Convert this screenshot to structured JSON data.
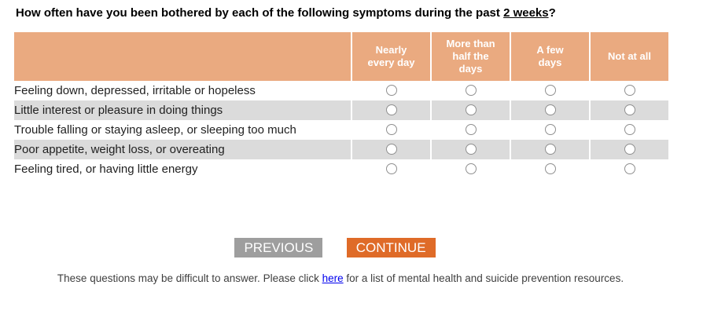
{
  "question": {
    "text_before": "How often have you been bothered by each of the following symptoms during the past ",
    "text_underlined": "2 weeks",
    "text_after": "?"
  },
  "table": {
    "column_headers": [
      "Nearly\nevery day",
      "More than\nhalf the\ndays",
      "A few\ndays",
      "Not at all"
    ],
    "rows": [
      "Feeling down, depressed, irritable or hopeless",
      "Little interest or pleasure in doing things",
      "Trouble falling or staying asleep, or sleeping too much",
      "Poor appetite, weight loss, or overeating",
      "Feeling tired, or having little energy"
    ],
    "selections": [
      null,
      null,
      null,
      null,
      null
    ]
  },
  "buttons": {
    "previous": "PREVIOUS",
    "continue": "CONTINUE"
  },
  "footer": {
    "text_before": "These questions may be difficult to answer. Please click ",
    "link_text": "here",
    "text_after": " for a list of mental health and suicide prevention resources."
  },
  "colors": {
    "header_bg": "#EAAA80",
    "row_alt_bg": "#DBDBDB",
    "previous_bg": "#9E9E9E",
    "continue_bg": "#DF6B28",
    "link": "#0000EE"
  }
}
